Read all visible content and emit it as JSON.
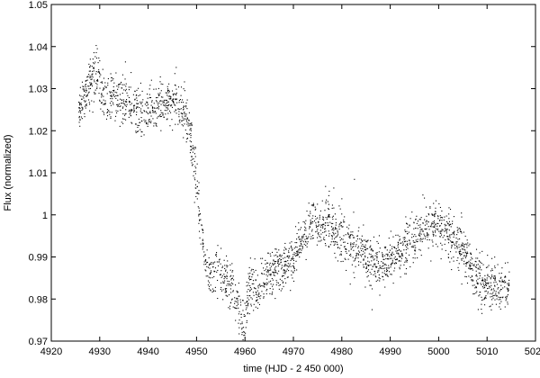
{
  "chart_data": {
    "type": "scatter",
    "title": "",
    "xlabel": "time (HJD - 2 450 000)",
    "ylabel": "Flux (normalized)",
    "xlim": [
      4920,
      5020
    ],
    "ylim": [
      0.97,
      1.05
    ],
    "x_ticks": [
      4920,
      4930,
      4940,
      4950,
      4960,
      4970,
      4980,
      4990,
      5000,
      5010,
      5020
    ],
    "x_tick_labels": [
      "4920",
      "4930",
      "4940",
      "4950",
      "4960",
      "4970",
      "4980",
      "4990",
      "5000",
      "5010",
      "5020"
    ],
    "y_ticks": [
      0.97,
      0.98,
      0.99,
      1.0,
      1.01,
      1.02,
      1.03,
      1.04,
      1.05
    ],
    "y_tick_labels": [
      "0.97",
      "0.98",
      "0.99",
      "1",
      "1.01",
      "1.02",
      "1.03",
      "1.04",
      "1.05"
    ],
    "grid": false,
    "marker": "dot",
    "series": [
      {
        "color": "#000000",
        "trend_x": [
          4925.5,
          4926.5,
          4927.5,
          4928.5,
          4929.5,
          4930.5,
          4932,
          4934,
          4936,
          4938,
          4940,
          4942,
          4944,
          4946,
          4947.5,
          4948.5,
          4949.5,
          4950.5,
          4951.5,
          4952.5,
          4953.5,
          4955,
          4957,
          4958.5,
          4959.5,
          4961,
          4962.5,
          4964,
          4966,
          4968,
          4970,
          4972,
          4974,
          4975.5,
          4977,
          4979,
          4981,
          4983,
          4985,
          4987,
          4989,
          4991,
          4993,
          4995,
          4997,
          4999,
          5001,
          5003,
          5005,
          5006.5,
          5007.5,
          5009,
          5011,
          5013,
          5014.5
        ],
        "trend_y": [
          1.025,
          1.028,
          1.03,
          1.034,
          1.033,
          1.029,
          1.028,
          1.027,
          1.026,
          1.025,
          1.025,
          1.026,
          1.027,
          1.026,
          1.024,
          1.02,
          1.012,
          1.0,
          0.99,
          0.985,
          0.988,
          0.986,
          0.983,
          0.978,
          0.975,
          0.983,
          0.981,
          0.985,
          0.987,
          0.988,
          0.99,
          0.995,
          0.999,
          0.996,
          0.999,
          0.995,
          0.993,
          0.993,
          0.99,
          0.988,
          0.989,
          0.991,
          0.993,
          0.995,
          0.997,
          0.998,
          0.996,
          0.994,
          0.992,
          0.988,
          0.985,
          0.984,
          0.983,
          0.982,
          0.983
        ],
        "scatter_sd": 0.0028,
        "n_points": 2600
      }
    ]
  }
}
